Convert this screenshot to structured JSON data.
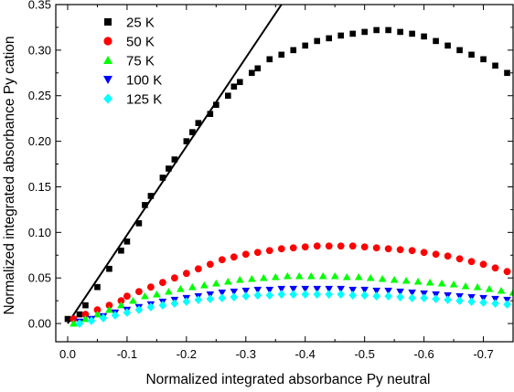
{
  "chart_data": {
    "type": "scatter",
    "title": "",
    "xlabel": "Normalized integrated absorbance Py neutral",
    "ylabel": "Normalized integrated absorbance Py cation",
    "xlim": [
      0.02,
      -0.75
    ],
    "ylim": [
      -0.02,
      0.35
    ],
    "x_ticks": [
      0.0,
      -0.1,
      -0.2,
      -0.3,
      -0.4,
      -0.5,
      -0.6,
      -0.7
    ],
    "x_tick_labels": [
      "0.0",
      "-0.1",
      "-0.2",
      "-0.3",
      "-0.4",
      "-0.5",
      "-0.6",
      "-0.7"
    ],
    "y_ticks": [
      0.0,
      0.05,
      0.1,
      0.15,
      0.2,
      0.25,
      0.3,
      0.35
    ],
    "y_tick_labels": [
      "0.00",
      "0.05",
      "0.10",
      "0.15",
      "0.20",
      "0.25",
      "0.30",
      "0.35"
    ],
    "grid": false,
    "legend_position": "top-left",
    "fit_line": {
      "x": [
        0.0,
        -0.36
      ],
      "y": [
        0.0,
        0.35
      ],
      "color": "#000000"
    },
    "series": [
      {
        "name": "25 K",
        "marker": "square",
        "color": "#000000",
        "x": [
          0.0,
          -0.02,
          -0.03,
          -0.05,
          -0.07,
          -0.09,
          -0.1,
          -0.12,
          -0.13,
          -0.14,
          -0.16,
          -0.17,
          -0.18,
          -0.2,
          -0.21,
          -0.22,
          -0.24,
          -0.25,
          -0.27,
          -0.28,
          -0.29,
          -0.31,
          -0.32,
          -0.34,
          -0.36,
          -0.38,
          -0.4,
          -0.42,
          -0.44,
          -0.46,
          -0.48,
          -0.5,
          -0.52,
          -0.54,
          -0.56,
          -0.58,
          -0.6,
          -0.62,
          -0.64,
          -0.66,
          -0.68,
          -0.7,
          -0.72,
          -0.74
        ],
        "y": [
          0.005,
          0.01,
          0.02,
          0.04,
          0.06,
          0.08,
          0.09,
          0.11,
          0.13,
          0.14,
          0.16,
          0.17,
          0.18,
          0.2,
          0.21,
          0.22,
          0.23,
          0.24,
          0.25,
          0.26,
          0.265,
          0.275,
          0.28,
          0.29,
          0.295,
          0.3,
          0.305,
          0.31,
          0.313,
          0.316,
          0.318,
          0.32,
          0.322,
          0.322,
          0.32,
          0.318,
          0.315,
          0.31,
          0.305,
          0.3,
          0.295,
          0.29,
          0.283,
          0.275
        ]
      },
      {
        "name": "50 K",
        "marker": "circle",
        "color": "#ff0000",
        "x": [
          -0.01,
          -0.03,
          -0.05,
          -0.07,
          -0.09,
          -0.1,
          -0.12,
          -0.14,
          -0.16,
          -0.18,
          -0.2,
          -0.22,
          -0.24,
          -0.26,
          -0.28,
          -0.3,
          -0.32,
          -0.34,
          -0.36,
          -0.38,
          -0.4,
          -0.42,
          -0.44,
          -0.46,
          -0.48,
          -0.5,
          -0.52,
          -0.54,
          -0.56,
          -0.58,
          -0.6,
          -0.62,
          -0.64,
          -0.66,
          -0.68,
          -0.7,
          -0.72,
          -0.74
        ],
        "y": [
          0.005,
          0.01,
          0.015,
          0.02,
          0.025,
          0.03,
          0.035,
          0.04,
          0.045,
          0.05,
          0.055,
          0.06,
          0.065,
          0.07,
          0.073,
          0.076,
          0.078,
          0.08,
          0.082,
          0.083,
          0.084,
          0.085,
          0.085,
          0.085,
          0.085,
          0.084,
          0.083,
          0.082,
          0.081,
          0.08,
          0.078,
          0.076,
          0.074,
          0.071,
          0.068,
          0.065,
          0.061,
          0.057
        ]
      },
      {
        "name": "75 K",
        "marker": "triangle-up",
        "color": "#00ff00",
        "x": [
          -0.01,
          -0.03,
          -0.05,
          -0.07,
          -0.09,
          -0.11,
          -0.13,
          -0.15,
          -0.17,
          -0.19,
          -0.21,
          -0.23,
          -0.25,
          -0.27,
          -0.29,
          -0.31,
          -0.33,
          -0.35,
          -0.37,
          -0.39,
          -0.41,
          -0.43,
          -0.45,
          -0.47,
          -0.49,
          -0.51,
          -0.53,
          -0.55,
          -0.57,
          -0.59,
          -0.61,
          -0.63,
          -0.65,
          -0.67,
          -0.69,
          -0.71,
          -0.73,
          -0.75
        ],
        "y": [
          0.0,
          0.005,
          0.01,
          0.015,
          0.02,
          0.025,
          0.03,
          0.032,
          0.035,
          0.038,
          0.04,
          0.042,
          0.044,
          0.046,
          0.048,
          0.049,
          0.05,
          0.051,
          0.052,
          0.052,
          0.052,
          0.052,
          0.052,
          0.051,
          0.051,
          0.05,
          0.049,
          0.048,
          0.047,
          0.046,
          0.045,
          0.044,
          0.043,
          0.041,
          0.04,
          0.038,
          0.036,
          0.034
        ]
      },
      {
        "name": "100 K",
        "marker": "triangle-down",
        "color": "#0000ff",
        "x": [
          -0.02,
          -0.04,
          -0.06,
          -0.08,
          -0.1,
          -0.12,
          -0.14,
          -0.16,
          -0.18,
          -0.2,
          -0.22,
          -0.24,
          -0.26,
          -0.28,
          -0.3,
          -0.32,
          -0.34,
          -0.36,
          -0.38,
          -0.4,
          -0.42,
          -0.44,
          -0.46,
          -0.48,
          -0.5,
          -0.52,
          -0.54,
          -0.56,
          -0.58,
          -0.6,
          -0.62,
          -0.64,
          -0.66,
          -0.68,
          -0.7,
          -0.72,
          -0.74
        ],
        "y": [
          0.002,
          0.005,
          0.008,
          0.012,
          0.015,
          0.018,
          0.021,
          0.024,
          0.026,
          0.028,
          0.03,
          0.032,
          0.034,
          0.035,
          0.036,
          0.037,
          0.037,
          0.038,
          0.038,
          0.038,
          0.038,
          0.038,
          0.038,
          0.037,
          0.037,
          0.036,
          0.036,
          0.035,
          0.034,
          0.033,
          0.032,
          0.031,
          0.03,
          0.029,
          0.028,
          0.027,
          0.026
        ]
      },
      {
        "name": "125 K",
        "marker": "diamond",
        "color": "#00ffff",
        "x": [
          -0.02,
          -0.04,
          -0.06,
          -0.08,
          -0.1,
          -0.12,
          -0.14,
          -0.16,
          -0.18,
          -0.2,
          -0.22,
          -0.24,
          -0.26,
          -0.28,
          -0.3,
          -0.32,
          -0.34,
          -0.36,
          -0.38,
          -0.4,
          -0.42,
          -0.44,
          -0.46,
          -0.48,
          -0.5,
          -0.52,
          -0.54,
          -0.56,
          -0.58,
          -0.6,
          -0.62,
          -0.64,
          -0.66,
          -0.68,
          -0.7,
          -0.72,
          -0.74
        ],
        "y": [
          0.0,
          0.003,
          0.006,
          0.009,
          0.012,
          0.015,
          0.018,
          0.02,
          0.022,
          0.024,
          0.026,
          0.027,
          0.028,
          0.029,
          0.03,
          0.031,
          0.031,
          0.032,
          0.032,
          0.032,
          0.032,
          0.032,
          0.032,
          0.031,
          0.031,
          0.03,
          0.03,
          0.029,
          0.028,
          0.028,
          0.027,
          0.026,
          0.025,
          0.024,
          0.023,
          0.022,
          0.021
        ]
      }
    ]
  }
}
